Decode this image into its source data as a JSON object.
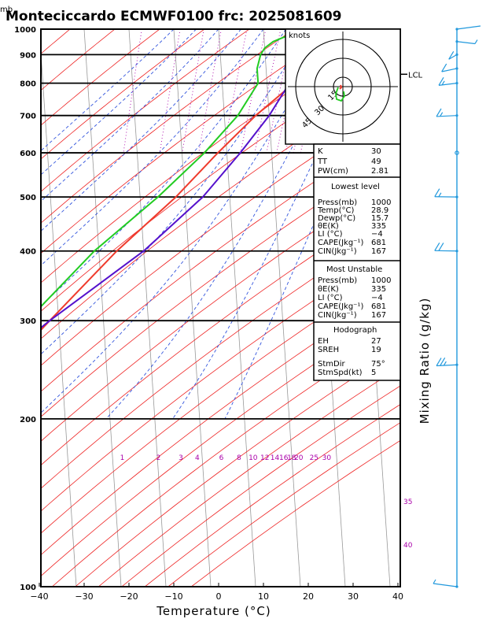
{
  "header": {
    "unit": "mb",
    "title": "Monteciccardo ECMWF0100 frc: 2025081609"
  },
  "hodograph": {
    "label": "knots",
    "ring_labels": [
      "15",
      "30",
      "45"
    ]
  },
  "indices_top": [
    {
      "label": "K",
      "value": "30"
    },
    {
      "label": "TT",
      "value": "49"
    },
    {
      "label": "PW(cm)",
      "value": "2.81"
    }
  ],
  "lowest_level": {
    "title": "Lowest level",
    "rows": [
      {
        "label": "Press(mb)",
        "value": "1000"
      },
      {
        "label": "Temp(°C)",
        "value": "28.9"
      },
      {
        "label": "Dewp(°C)",
        "value": "15.7"
      },
      {
        "label": "θE(K)",
        "value": "335"
      },
      {
        "label": "LI (°C)",
        "value": "−4"
      },
      {
        "label": "CAPE(Jkg⁻¹)",
        "value": "681"
      },
      {
        "label": "CIN(Jkg⁻¹)",
        "value": "167"
      }
    ]
  },
  "most_unstable": {
    "title": "Most Unstable",
    "rows": [
      {
        "label": "Press(mb)",
        "value": "1000"
      },
      {
        "label": "θE(K)",
        "value": "335"
      },
      {
        "label": "LI (°C)",
        "value": "−4"
      },
      {
        "label": "CAPE(Jkg⁻¹)",
        "value": "681"
      },
      {
        "label": "CIN(Jkg⁻¹)",
        "value": "167"
      }
    ]
  },
  "hodo_indices": {
    "title": "Hodograph",
    "rows": [
      {
        "label": "EH",
        "value": "27"
      },
      {
        "label": "SREH",
        "value": "19"
      }
    ],
    "storm_rows": [
      {
        "label": "StmDir",
        "value": "75°"
      },
      {
        "label": "StmSpd(kt)",
        "value": "5"
      }
    ]
  },
  "chart_data": {
    "type": "line",
    "title": "Monteciccardo ECMWF0100 frc: 2025081609",
    "xlabel": "Temperature (°C)",
    "ylabel": "mb",
    "right_label": "Mixing Ratio (g/kg)",
    "xlim": [
      -40,
      40
    ],
    "ylim": [
      1000,
      100
    ],
    "y_scale": "log",
    "x_ticks": [
      "−40",
      "−30",
      "−20",
      "−10",
      "0",
      "10",
      "20",
      "30",
      "40"
    ],
    "pressure_ticks": [
      1000,
      900,
      800,
      700,
      600,
      500,
      400,
      300,
      200,
      100
    ],
    "mixing_ratio_labels": [
      "1",
      "2",
      "3",
      "4",
      "6",
      "8",
      "10",
      "12",
      "14",
      "16",
      "18",
      "20",
      "25",
      "30",
      "35",
      "40"
    ],
    "lcl_label": "LCL",
    "lcl_pressure": 830,
    "series": [
      {
        "role": "temperature",
        "color": "#ef3b2c",
        "points": [
          [
            1000,
            29.5
          ],
          [
            975,
            27
          ],
          [
            925,
            25
          ],
          [
            900,
            24
          ],
          [
            850,
            20
          ],
          [
            800,
            16
          ],
          [
            700,
            7
          ],
          [
            600,
            -2
          ],
          [
            500,
            -12
          ],
          [
            400,
            -26
          ],
          [
            300,
            -42
          ],
          [
            250,
            -52
          ],
          [
            200,
            -56
          ],
          [
            150,
            -59
          ],
          [
            100,
            -61
          ]
        ]
      },
      {
        "role": "dewpoint",
        "color": "#22cc22",
        "points": [
          [
            1000,
            16
          ],
          [
            975,
            15.5
          ],
          [
            950,
            12
          ],
          [
            925,
            10
          ],
          [
            900,
            9
          ],
          [
            850,
            8
          ],
          [
            800,
            8
          ],
          [
            700,
            3
          ],
          [
            600,
            -5
          ],
          [
            500,
            -16
          ],
          [
            400,
            -31
          ],
          [
            300,
            -47
          ],
          [
            250,
            -60
          ],
          [
            200,
            -70
          ],
          [
            150,
            -77
          ],
          [
            100,
            -85
          ]
        ]
      },
      {
        "role": "parcel",
        "color": "#5511cc",
        "points": [
          [
            1000,
            29
          ],
          [
            900,
            21.5
          ],
          [
            830,
            16
          ],
          [
            800,
            15
          ],
          [
            700,
            10
          ],
          [
            600,
            3
          ],
          [
            500,
            -6
          ],
          [
            400,
            -20
          ],
          [
            300,
            -42
          ],
          [
            250,
            -55
          ],
          [
            200,
            -72
          ],
          [
            150,
            -95
          ],
          [
            120,
            -115
          ]
        ]
      }
    ],
    "wind_profile": [
      {
        "p": 1000,
        "dir": 90,
        "spd": 2
      },
      {
        "p": 950,
        "dir": 130,
        "spd": 5
      },
      {
        "p": 900,
        "dir": 200,
        "spd": 10
      },
      {
        "p": 850,
        "dir": 220,
        "spd": 10
      },
      {
        "p": 800,
        "dir": 230,
        "spd": 15
      },
      {
        "p": 700,
        "dir": 240,
        "spd": 15
      },
      {
        "p": 600,
        "dir": 0,
        "spd": 0
      },
      {
        "p": 500,
        "dir": 250,
        "spd": 15
      },
      {
        "p": 400,
        "dir": 250,
        "spd": 20
      },
      {
        "p": 250,
        "dir": 240,
        "spd": 25
      },
      {
        "p": 100,
        "dir": 270,
        "spd": 5
      }
    ],
    "colors": {
      "dry_adiabat": "#ee2222",
      "moist_adiabat": "#3355dd",
      "isotherm": "#999999",
      "mixing_ratio": "#aa00aa",
      "wind": "#2299dd"
    }
  }
}
